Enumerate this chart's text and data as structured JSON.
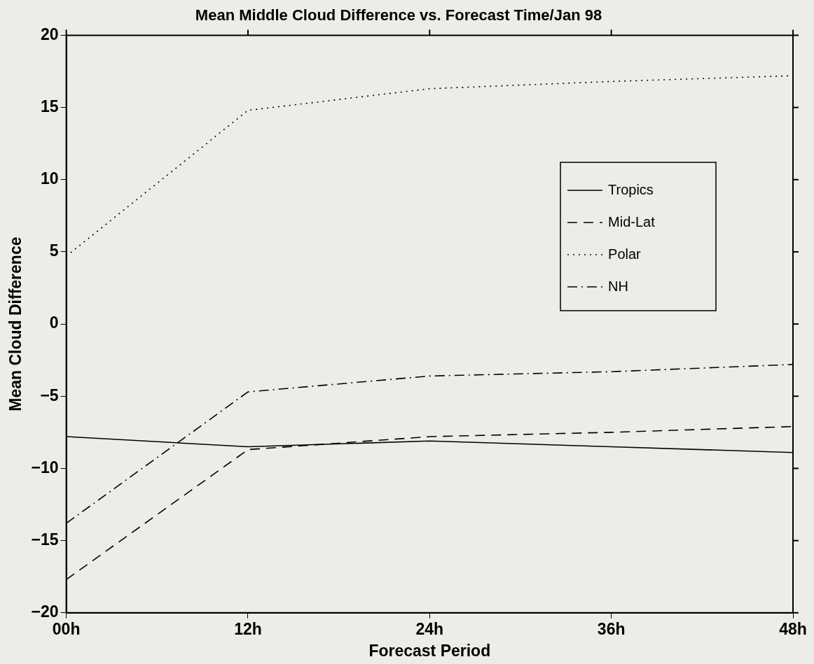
{
  "chart_data": {
    "type": "line",
    "title": "Mean Middle Cloud Difference vs. Forecast Time/Jan 98",
    "xlabel": "Forecast Period",
    "ylabel": "Mean Cloud Difference",
    "categories": [
      "00h",
      "12h",
      "24h",
      "36h",
      "48h"
    ],
    "series": [
      {
        "name": "Tropics",
        "color": "#000000",
        "line_style": "solid",
        "values": [
          -7.8,
          -8.5,
          -8.1,
          -8.5,
          -8.9
        ]
      },
      {
        "name": "Mid-Lat",
        "color": "#000000",
        "line_style": "dashed",
        "values": [
          -17.7,
          -8.7,
          -7.8,
          -7.5,
          -7.1
        ]
      },
      {
        "name": "Polar",
        "color": "#000000",
        "line_style": "dotted",
        "values": [
          4.7,
          14.8,
          16.3,
          16.8,
          17.2
        ]
      },
      {
        "name": "NH",
        "color": "#000000",
        "line_style": "dashdot",
        "values": [
          -13.8,
          -4.7,
          -3.6,
          -3.3,
          -2.8
        ]
      }
    ],
    "ylim": [
      -20,
      20
    ],
    "yticks": [
      -20,
      -15,
      -10,
      -5,
      0,
      5,
      10,
      15,
      20
    ],
    "grid": false,
    "legend": "right",
    "marker": "none"
  }
}
